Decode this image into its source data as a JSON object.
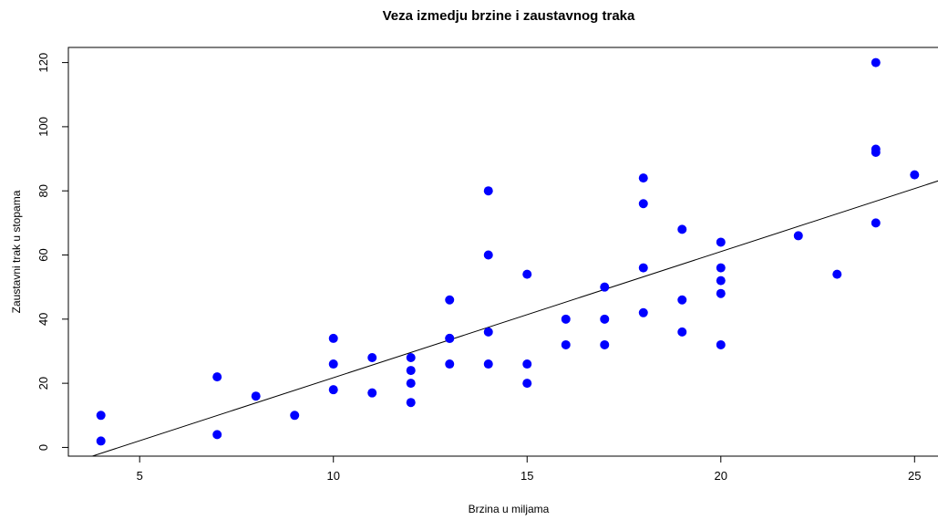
{
  "chart_data": {
    "type": "scatter",
    "title": "Veza izmedju brzine i zaustavnog traka",
    "x_label": "Brzina u miljama",
    "y_label": "Zaustavni trak u stopama",
    "x": [
      4,
      4,
      7,
      7,
      8,
      9,
      10,
      10,
      10,
      11,
      11,
      12,
      12,
      12,
      12,
      13,
      13,
      13,
      13,
      14,
      14,
      14,
      14,
      15,
      15,
      15,
      16,
      16,
      17,
      17,
      17,
      18,
      18,
      18,
      18,
      19,
      19,
      19,
      20,
      20,
      20,
      20,
      20,
      22,
      23,
      24,
      24,
      24,
      24,
      25
    ],
    "values": [
      2,
      10,
      4,
      22,
      16,
      10,
      18,
      26,
      34,
      17,
      28,
      14,
      20,
      24,
      28,
      26,
      34,
      34,
      46,
      26,
      36,
      60,
      80,
      20,
      26,
      54,
      32,
      40,
      32,
      40,
      50,
      42,
      56,
      76,
      84,
      36,
      46,
      68,
      32,
      48,
      52,
      56,
      64,
      66,
      54,
      70,
      92,
      93,
      120,
      85
    ],
    "color": "#0000ff",
    "trend": {
      "x": [
        3.16,
        25.84
      ],
      "values": [
        -5.15,
        84.02
      ],
      "color": "#000000"
    },
    "xlim": [
      3.16,
      25.84
    ],
    "ylim": [
      -2.72,
      124.72
    ],
    "xticks": [
      5,
      10,
      15,
      20,
      25
    ],
    "yticks": [
      0,
      20,
      40,
      60,
      80,
      100,
      120
    ]
  }
}
